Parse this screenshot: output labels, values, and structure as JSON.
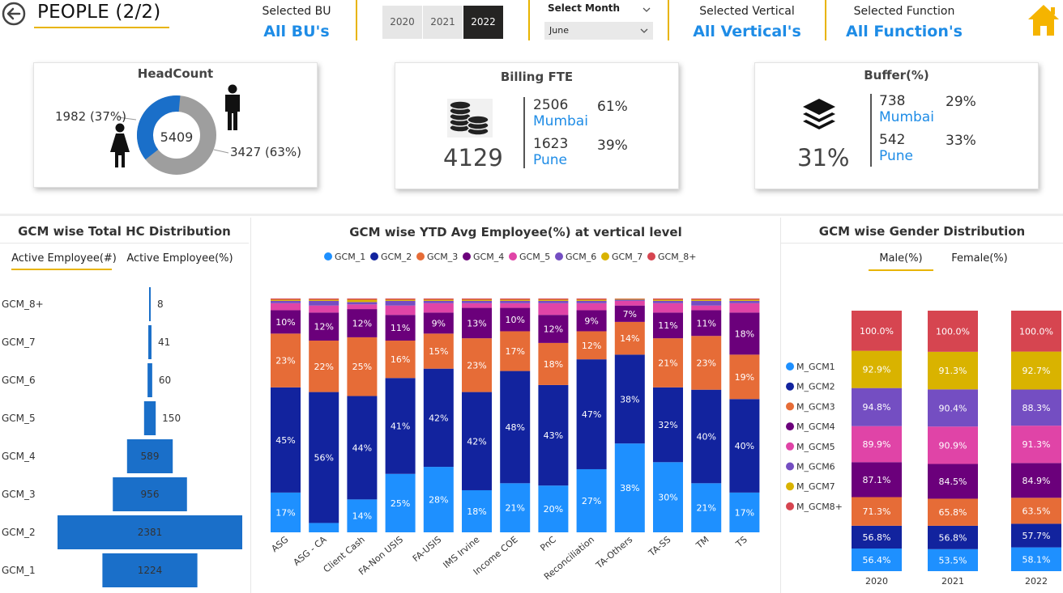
{
  "header": {
    "title": "PEOPLE (2/2)",
    "bu_label": "Selected BU",
    "bu_value": "All BU's",
    "years": [
      "2020",
      "2021",
      "2022"
    ],
    "selected_year": "2022",
    "month_label": "Select Month",
    "month_value": "June",
    "vertical_label": "Selected Vertical",
    "vertical_value": "All Vertical's",
    "function_label": "Selected Function",
    "function_value": "All Function's",
    "accent_color": "#e8b400",
    "link_color": "#1e8ce6",
    "home_icon_color": "#f5b400"
  },
  "headcount": {
    "title": "HeadCount",
    "total": "5409",
    "female_label": "1982 (37%)",
    "male_label": "3427 (63%)",
    "female_share": 0.37,
    "male_share": 0.63,
    "female_color": "#1a6fc9",
    "male_color": "#9e9e9e"
  },
  "billing": {
    "title": "Billing FTE",
    "total": "4129",
    "rows": [
      {
        "num": "2506",
        "city": "Mumbai",
        "pct": "61%"
      },
      {
        "num": "1623",
        "city": "Pune",
        "pct": "39%"
      }
    ]
  },
  "buffer": {
    "title": "Buffer(%)",
    "total": "31%",
    "rows": [
      {
        "num": "738",
        "city": "Mumbai",
        "pct": "29%"
      },
      {
        "num": "542",
        "city": "Pune",
        "pct": "33%"
      }
    ]
  },
  "funnel": {
    "title": "GCM wise Total HC Distribution",
    "tabs": [
      "Active Employee(#)",
      "Active Employee(%)"
    ],
    "active_tab": 0,
    "color": "#1a6fc9",
    "chart_data": {
      "type": "bar",
      "orientation": "funnel",
      "categories": [
        "GCM_8+",
        "GCM_7",
        "GCM_6",
        "GCM_5",
        "GCM_4",
        "GCM_3",
        "GCM_2",
        "GCM_1"
      ],
      "values": [
        8,
        41,
        60,
        150,
        589,
        956,
        2381,
        1224
      ]
    }
  },
  "stacked": {
    "title": "GCM wise YTD Avg Employee(%) at vertical level",
    "chart_data": {
      "type": "bar",
      "stacked": true,
      "categories": [
        "ASG",
        "ASG - CA",
        "Client Cash",
        "FA-Non USIS",
        "FA-USIS",
        "IMS Irvine",
        "Income COE",
        "PnC",
        "Reconciliation",
        "TA-Others",
        "TA-SS",
        "TM",
        "TS"
      ],
      "series": [
        {
          "name": "GCM_1",
          "color": "#1e90ff",
          "values": [
            17,
            4,
            14,
            25,
            28,
            18,
            21,
            20,
            27,
            38,
            30,
            21,
            17
          ],
          "labels": [
            "17%",
            "",
            "14%",
            "25%",
            "28%",
            "18%",
            "21%",
            "20%",
            "27%",
            "38%",
            "30%",
            "21%",
            "17%"
          ]
        },
        {
          "name": "GCM_2",
          "color": "#12239e",
          "values": [
            45,
            56,
            44,
            41,
            42,
            42,
            48,
            43,
            47,
            38,
            32,
            40,
            40
          ],
          "labels": [
            "45%",
            "56%",
            "44%",
            "41%",
            "42%",
            "42%",
            "48%",
            "43%",
            "47%",
            "38%",
            "32%",
            "40%",
            "40%"
          ]
        },
        {
          "name": "GCM_3",
          "color": "#e66c37",
          "values": [
            23,
            22,
            25,
            16,
            15,
            23,
            17,
            18,
            12,
            14,
            21,
            23,
            19
          ],
          "labels": [
            "23%",
            "22%",
            "25%",
            "16%",
            "15%",
            "23%",
            "17%",
            "18%",
            "12%",
            "14%",
            "21%",
            "23%",
            "19%"
          ]
        },
        {
          "name": "GCM_4",
          "color": "#6b007b",
          "values": [
            10,
            12,
            12,
            11,
            9,
            13,
            10,
            12,
            9,
            7,
            11,
            11,
            18
          ],
          "labels": [
            "10%",
            "12%",
            "12%",
            "11%",
            "9%",
            "13%",
            "10%",
            "12%",
            "9%",
            "7%",
            "11%",
            "11%",
            "18%"
          ]
        },
        {
          "name": "GCM_5",
          "color": "#e044a7",
          "values": [
            3,
            3,
            2,
            4,
            4,
            2,
            2,
            5,
            3,
            2,
            4,
            2,
            4
          ],
          "labels": [
            "",
            "",
            "",
            "",
            "",
            "",
            "",
            "",
            "",
            "",
            "",
            "",
            ""
          ]
        },
        {
          "name": "GCM_6",
          "color": "#744ec2",
          "values": [
            1,
            2,
            1,
            2,
            1,
            1,
            1,
            1,
            1,
            0.5,
            1,
            2,
            1
          ],
          "labels": [
            "",
            "",
            "",
            "",
            "",
            "",
            "",
            "",
            "",
            "",
            "",
            "",
            ""
          ]
        },
        {
          "name": "GCM_7",
          "color": "#d9b300",
          "values": [
            0.5,
            0.5,
            1,
            0.5,
            0.5,
            0.5,
            0.5,
            0.5,
            0.5,
            0.3,
            0.5,
            0.5,
            0.5
          ],
          "labels": [
            "",
            "",
            "",
            "",
            "",
            "",
            "",
            "",
            "",
            "",
            "",
            "",
            ""
          ]
        },
        {
          "name": "GCM_8+",
          "color": "#d64550",
          "values": [
            0.5,
            0.5,
            0.5,
            0.5,
            0.5,
            0.5,
            0.5,
            0.5,
            0.5,
            0.2,
            0.5,
            0.5,
            0.5
          ],
          "labels": [
            "",
            "",
            "",
            "",
            "",
            "",
            "",
            "",
            "",
            "",
            "",
            "",
            ""
          ]
        }
      ]
    }
  },
  "gender": {
    "title": "GCM wise Gender Distribution",
    "tabs": [
      "Male(%)",
      "Female(%)"
    ],
    "active_tab": 0,
    "chart_data": {
      "type": "bar",
      "stacked": true,
      "categories": [
        "2020",
        "2021",
        "2022"
      ],
      "series": [
        {
          "name": "M_GCM1",
          "color": "#1e90ff",
          "values": [
            56.4,
            53.5,
            58.1
          ],
          "labels": [
            "56.4%",
            "53.5%",
            "58.1%"
          ]
        },
        {
          "name": "M_GCM2",
          "color": "#12239e",
          "values": [
            56.8,
            56.8,
            57.7
          ],
          "labels": [
            "56.8%",
            "56.8%",
            "57.7%"
          ]
        },
        {
          "name": "M_GCM3",
          "color": "#e66c37",
          "values": [
            71.3,
            65.8,
            63.5
          ],
          "labels": [
            "71.3%",
            "65.8%",
            "63.5%"
          ]
        },
        {
          "name": "M_GCM4",
          "color": "#6b007b",
          "values": [
            87.1,
            84.5,
            84.9
          ],
          "labels": [
            "87.1%",
            "84.5%",
            "84.9%"
          ]
        },
        {
          "name": "M_GCM5",
          "color": "#e044a7",
          "values": [
            89.9,
            90.9,
            91.3
          ],
          "labels": [
            "89.9%",
            "90.9%",
            "91.3%"
          ]
        },
        {
          "name": "M_GCM6",
          "color": "#744ec2",
          "values": [
            94.8,
            90.4,
            88.3
          ],
          "labels": [
            "94.8%",
            "90.4%",
            "88.3%"
          ]
        },
        {
          "name": "M_GCM7",
          "color": "#d9b300",
          "values": [
            92.9,
            91.3,
            92.7
          ],
          "labels": [
            "92.9%",
            "91.3%",
            "92.7%"
          ]
        },
        {
          "name": "M_GCM8+",
          "color": "#d64550",
          "values": [
            100.0,
            100.0,
            100.0
          ],
          "labels": [
            "100.0%",
            "100.0%",
            "100.0%"
          ]
        }
      ]
    }
  }
}
